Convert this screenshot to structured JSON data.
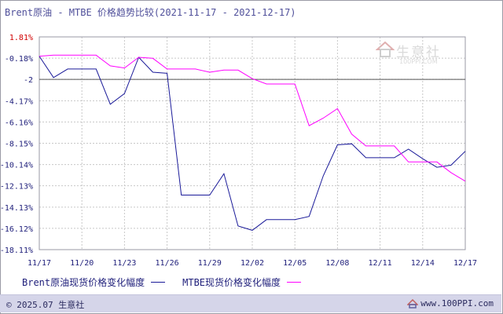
{
  "title": "Brent原油 - MTBE 价格趋势比较(2021-11-17 - 2021-12-17)",
  "watermark": {
    "name": "生意社",
    "url": "100PPI.COM"
  },
  "footer": {
    "copyright": "© 2025.07 生意社",
    "site": "www.100PPI.com"
  },
  "colors": {
    "brent": "#1a1a99",
    "mtbe": "#ff00ff",
    "grid": "#c8c8c8",
    "axis": "#555555",
    "axis_label_neg": "#1e1e7a",
    "axis_label_pos": "#d00000"
  },
  "chart_data": {
    "type": "line",
    "x": [
      "11/17",
      "11/18",
      "11/19",
      "11/20",
      "11/21",
      "11/22",
      "11/23",
      "11/24",
      "11/25",
      "11/26",
      "11/27",
      "11/28",
      "11/29",
      "11/30",
      "12/01",
      "12/02",
      "12/03",
      "12/04",
      "12/05",
      "12/06",
      "12/07",
      "12/08",
      "12/09",
      "12/10",
      "12/11",
      "12/12",
      "12/13",
      "12/14",
      "12/15",
      "12/16",
      "12/17"
    ],
    "xticks": [
      "11/17",
      "11/20",
      "11/23",
      "11/26",
      "11/29",
      "12/02",
      "12/05",
      "12/08",
      "12/11",
      "12/14",
      "12/17"
    ],
    "yticks": [
      "1.81%",
      "-0.18%",
      "-2",
      "-4.17%",
      "-6.16%",
      "-8.15%",
      "-10.14%",
      "-12.13%",
      "-14.13%",
      "-16.12%",
      "-18.11%"
    ],
    "ytick_values": [
      1.81,
      -0.18,
      -2.17,
      -4.17,
      -6.16,
      -8.15,
      -10.14,
      -12.13,
      -14.13,
      -16.12,
      -18.11
    ],
    "ylim": [
      -18.11,
      1.81
    ],
    "reference_line": -2.17,
    "grid": true,
    "legend_position": "bottom",
    "series": [
      {
        "name": "Brent原油现货价格变化幅度",
        "color": "#1a1a99",
        "values": [
          0,
          -2,
          -1.2,
          -1.2,
          -1.2,
          -4.5,
          -3.5,
          -0.1,
          -1.5,
          -1.6,
          -13,
          -13,
          -13,
          -11,
          -15.9,
          -16.3,
          -15.3,
          -15.3,
          -15.3,
          -15.0,
          -11.2,
          -8.3,
          -8.2,
          -9.5,
          -9.5,
          -9.5,
          -8.7,
          -9.6,
          -10.4,
          -10.2,
          -8.9
        ]
      },
      {
        "name": "MTBE现货价格变化幅度",
        "color": "#ff00ff",
        "values": [
          0,
          0.1,
          0.1,
          0.1,
          0.1,
          -0.9,
          -1.1,
          -0.1,
          -0.2,
          -1.2,
          -1.2,
          -1.2,
          -1.5,
          -1.3,
          -1.3,
          -2.1,
          -2.6,
          -2.6,
          -2.6,
          -6.5,
          -5.8,
          -4.9,
          -7.3,
          -8.4,
          -8.4,
          -8.4,
          -9.9,
          -9.9,
          -9.9,
          -10.9,
          -11.7
        ]
      }
    ]
  }
}
